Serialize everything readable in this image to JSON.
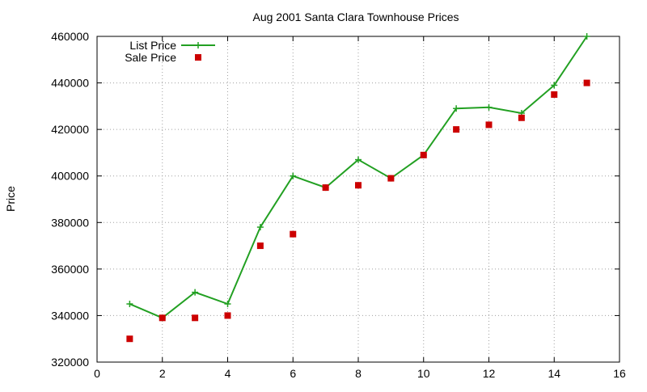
{
  "chart_data": {
    "type": "line",
    "title": "Aug 2001 Santa Clara Townhouse Prices",
    "xlabel": "",
    "ylabel": "Price",
    "xlim": [
      0,
      16
    ],
    "ylim": [
      320000,
      460000
    ],
    "xticks": [
      0,
      2,
      4,
      6,
      8,
      10,
      12,
      14,
      16
    ],
    "yticks": [
      320000,
      340000,
      360000,
      380000,
      400000,
      420000,
      440000,
      460000
    ],
    "grid": true,
    "legend_position": "top-left",
    "series": [
      {
        "name": "List Price",
        "style": "linespoints",
        "marker": "plus",
        "color": "#22a022",
        "x": [
          1,
          2,
          3,
          4,
          5,
          6,
          7,
          8,
          9,
          10,
          11,
          12,
          13,
          14,
          15
        ],
        "y": [
          345000,
          339000,
          350000,
          345000,
          378000,
          400000,
          395000,
          407000,
          399000,
          409000,
          429000,
          429500,
          427000,
          439000,
          460000
        ]
      },
      {
        "name": "Sale Price",
        "style": "points",
        "marker": "square",
        "color": "#cc0000",
        "x": [
          1,
          2,
          3,
          4,
          5,
          6,
          7,
          8,
          9,
          10,
          11,
          12,
          13,
          14,
          15
        ],
        "y": [
          330000,
          339000,
          339000,
          340000,
          370000,
          375000,
          395000,
          396000,
          399000,
          409000,
          420000,
          422000,
          425000,
          435000,
          440000
        ]
      }
    ]
  }
}
